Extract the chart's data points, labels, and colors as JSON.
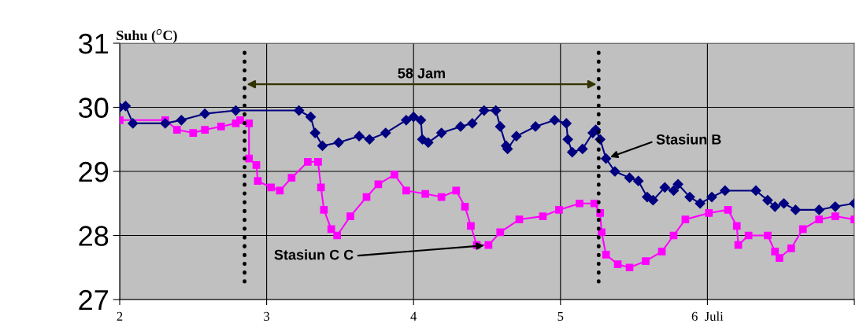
{
  "chart_data": {
    "type": "line",
    "ylabel": "Suhu ($^{o}$C)",
    "annotations": [
      "58 Jam"
    ],
    "xlim": [
      2,
      7
    ],
    "ylim": [
      27,
      31
    ],
    "yticks": [
      27,
      28,
      29,
      30,
      31
    ],
    "xticks": [
      2,
      3,
      4,
      5,
      {
        "value": 6,
        "label": "6  Juli"
      },
      {
        "value": 7,
        "label": null
      }
    ],
    "grid": true,
    "legend": false,
    "line_style": "solid",
    "ref_lines": [
      {
        "axis": "x",
        "value": 2.85,
        "color": "#000000",
        "line_style": "dotted"
      },
      {
        "axis": "x",
        "value": 5.26,
        "color": "#000000",
        "line_style": "dotted"
      }
    ],
    "series": [
      {
        "name": "Stasiun B",
        "color": "#000080",
        "marker": "diamond",
        "x": [
          2.0,
          2.04,
          2.09,
          2.31,
          2.42,
          2.58,
          2.79,
          3.22,
          3.3,
          3.33,
          3.38,
          3.49,
          3.63,
          3.7,
          3.81,
          3.95,
          4.0,
          4.05,
          4.06,
          4.1,
          4.19,
          4.32,
          4.4,
          4.48,
          4.56,
          4.59,
          4.63,
          4.64,
          4.7,
          4.83,
          4.96,
          5.04,
          5.05,
          5.08,
          5.15,
          5.22,
          5.24,
          5.27,
          5.31,
          5.37,
          5.47,
          5.53,
          5.59,
          5.63,
          5.71,
          5.77,
          5.8,
          5.88,
          5.95,
          6.03,
          6.12,
          6.33,
          6.41,
          6.46,
          6.52,
          6.6,
          6.76,
          6.87,
          7.0
        ],
        "values": [
          30.0,
          30.02,
          29.75,
          29.75,
          29.8,
          29.9,
          29.95,
          29.95,
          29.85,
          29.6,
          29.4,
          29.45,
          29.55,
          29.5,
          29.6,
          29.8,
          29.85,
          29.8,
          29.5,
          29.45,
          29.6,
          29.7,
          29.75,
          29.95,
          29.95,
          29.7,
          29.4,
          29.35,
          29.55,
          29.7,
          29.8,
          29.75,
          29.5,
          29.3,
          29.35,
          29.6,
          29.65,
          29.5,
          29.2,
          29.0,
          28.9,
          28.85,
          28.6,
          28.55,
          28.75,
          28.7,
          28.8,
          28.6,
          28.5,
          28.6,
          28.7,
          28.7,
          28.55,
          28.45,
          28.5,
          28.4,
          28.4,
          28.45,
          28.5
        ]
      },
      {
        "name": "Stasiun C C",
        "color": "#ff00ff",
        "marker": "square",
        "x": [
          2.0,
          2.31,
          2.39,
          2.5,
          2.58,
          2.69,
          2.79,
          2.82,
          2.88,
          2.88,
          2.93,
          2.94,
          3.03,
          3.09,
          3.17,
          3.28,
          3.35,
          3.37,
          3.39,
          3.44,
          3.48,
          3.57,
          3.68,
          3.76,
          3.87,
          3.95,
          4.08,
          4.19,
          4.29,
          4.35,
          4.39,
          4.43,
          4.51,
          4.59,
          4.72,
          4.88,
          4.99,
          5.13,
          5.23,
          5.27,
          5.28,
          5.31,
          5.39,
          5.47,
          5.58,
          5.69,
          5.77,
          5.85,
          6.01,
          6.14,
          6.2,
          6.21,
          6.28,
          6.41,
          6.46,
          6.49,
          6.57,
          6.65,
          6.76,
          6.87,
          7.0
        ],
        "values": [
          29.8,
          29.8,
          29.65,
          29.6,
          29.65,
          29.7,
          29.75,
          29.8,
          29.75,
          29.2,
          29.1,
          28.85,
          28.75,
          28.7,
          28.9,
          29.15,
          29.15,
          28.75,
          28.4,
          28.1,
          28.0,
          28.3,
          28.6,
          28.8,
          28.95,
          28.7,
          28.65,
          28.6,
          28.7,
          28.45,
          28.15,
          27.85,
          27.85,
          28.05,
          28.25,
          28.3,
          28.4,
          28.5,
          28.5,
          28.35,
          28.05,
          27.7,
          27.55,
          27.5,
          27.6,
          27.75,
          28.0,
          28.25,
          28.35,
          28.4,
          28.15,
          27.85,
          28.0,
          28.0,
          27.75,
          27.65,
          27.8,
          28.1,
          28.25,
          28.3,
          28.25
        ]
      }
    ]
  }
}
